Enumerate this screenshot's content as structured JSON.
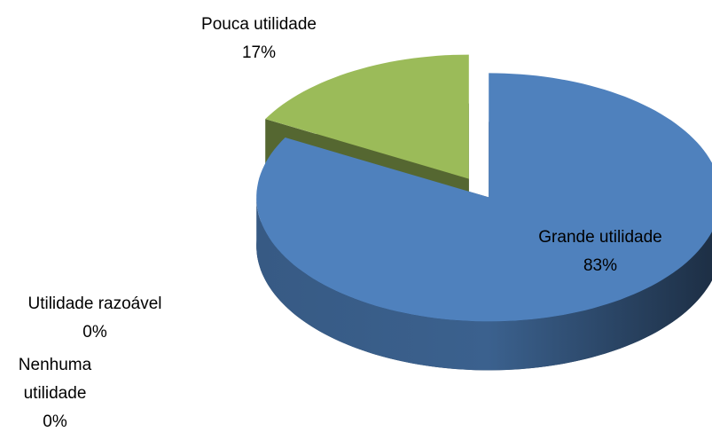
{
  "chart_data": {
    "type": "pie",
    "categories": [
      "Grande utilidade",
      "Pouca utilidade",
      "Utilidade razoável",
      "Nenhuma utilidade"
    ],
    "values": [
      83,
      17,
      0,
      0
    ],
    "value_labels": [
      "83%",
      "17%",
      "0%",
      "0%"
    ],
    "colors": [
      "#4f81bd",
      "#9bbb59",
      "#c0504d",
      "#8064a2"
    ],
    "three_d": true,
    "exploded": true
  }
}
